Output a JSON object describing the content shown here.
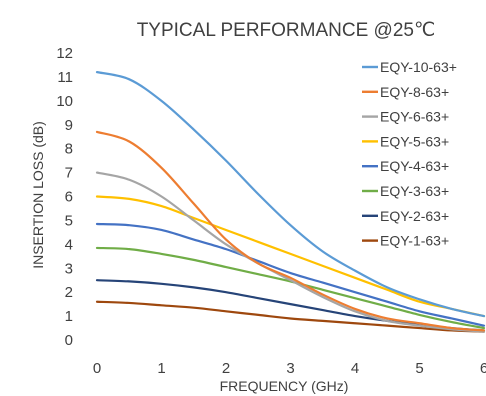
{
  "chart_data": {
    "type": "line",
    "title": "TYPICAL PERFORMANCE @25℃",
    "xlabel": "FREQUENCY (GHz)",
    "ylabel": "INSERTION LOSS (dB)",
    "xlim": [
      0,
      6
    ],
    "ylim": [
      0,
      12
    ],
    "x_ticks": [
      "0",
      "1",
      "2",
      "3",
      "4",
      "5",
      "6"
    ],
    "y_ticks": [
      "0",
      "1",
      "2",
      "3",
      "4",
      "5",
      "6",
      "7",
      "8",
      "9",
      "10",
      "11",
      "12"
    ],
    "grid": false,
    "legend_position": "top-right",
    "x": [
      0,
      0.5,
      1,
      1.5,
      2,
      2.5,
      3,
      3.5,
      4,
      4.5,
      5,
      5.5,
      6
    ],
    "series": [
      {
        "name": "EQY-10-63+",
        "color": "#5B9BD5",
        "values": [
          11.2,
          10.9,
          10.0,
          8.8,
          7.5,
          6.1,
          4.8,
          3.7,
          2.9,
          2.2,
          1.7,
          1.3,
          1.0
        ]
      },
      {
        "name": "EQY-8-63+",
        "color": "#ED7D31",
        "values": [
          8.7,
          8.3,
          7.2,
          5.7,
          4.2,
          3.2,
          2.6,
          1.9,
          1.3,
          0.9,
          0.7,
          0.5,
          0.4
        ]
      },
      {
        "name": "EQY-6-63+",
        "color": "#A5A5A5",
        "values": [
          7.0,
          6.7,
          6.0,
          5.0,
          4.0,
          3.2,
          2.5,
          1.8,
          1.2,
          0.8,
          0.6,
          0.45,
          0.35
        ]
      },
      {
        "name": "EQY-5-63+",
        "color": "#FFC000",
        "values": [
          6.0,
          5.9,
          5.6,
          5.1,
          4.6,
          4.1,
          3.6,
          3.1,
          2.6,
          2.1,
          1.6,
          1.3,
          1.0
        ]
      },
      {
        "name": "EQY-4-63+",
        "color": "#4472C4",
        "values": [
          4.85,
          4.8,
          4.6,
          4.2,
          3.8,
          3.3,
          2.8,
          2.4,
          2.0,
          1.6,
          1.2,
          0.9,
          0.6
        ]
      },
      {
        "name": "EQY-3-63+",
        "color": "#70AD47",
        "values": [
          3.85,
          3.8,
          3.6,
          3.35,
          3.05,
          2.75,
          2.45,
          2.1,
          1.75,
          1.4,
          1.05,
          0.75,
          0.5
        ]
      },
      {
        "name": "EQY-2-63+",
        "color": "#264478",
        "values": [
          2.5,
          2.45,
          2.35,
          2.2,
          2.0,
          1.75,
          1.5,
          1.25,
          1.0,
          0.8,
          0.65,
          0.5,
          0.4
        ]
      },
      {
        "name": "EQY-1-63+",
        "color": "#9E480E",
        "values": [
          1.6,
          1.55,
          1.45,
          1.35,
          1.2,
          1.05,
          0.9,
          0.8,
          0.7,
          0.6,
          0.5,
          0.4,
          0.35
        ]
      }
    ]
  }
}
